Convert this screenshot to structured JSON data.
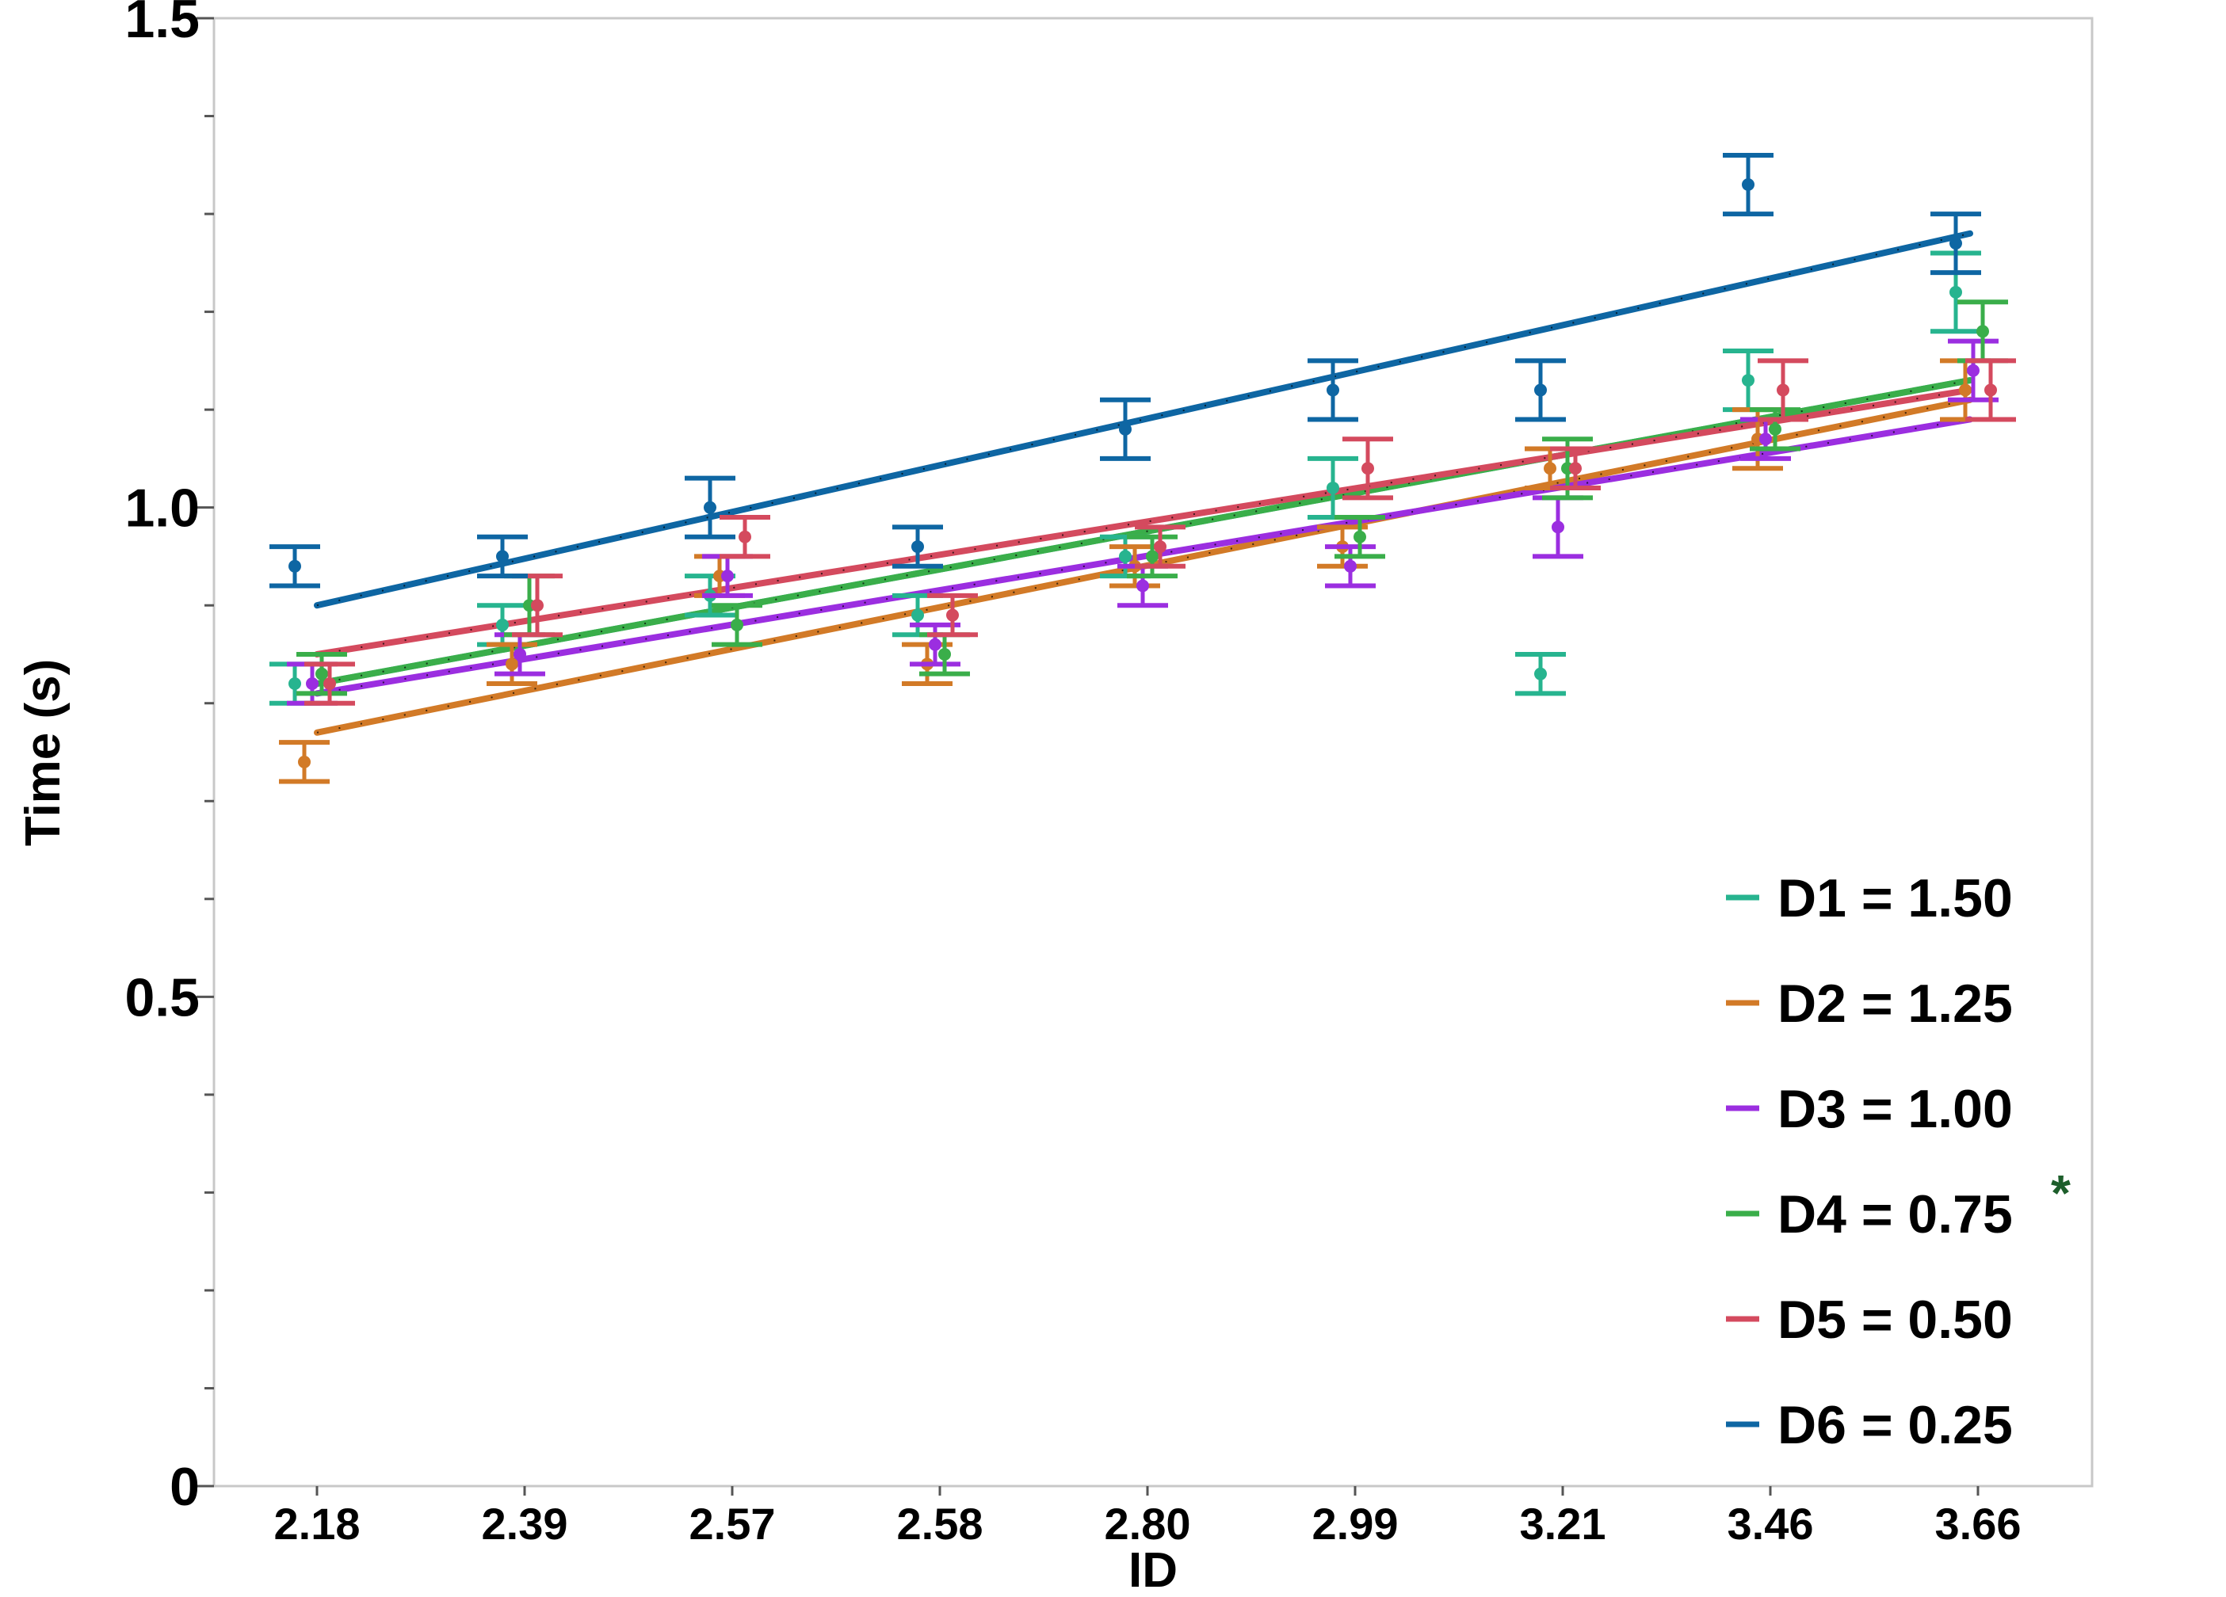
{
  "chart_data": {
    "type": "line",
    "title": "",
    "xlabel": "ID",
    "ylabel": "Time (s)",
    "ylim": [
      0,
      1.5
    ],
    "yticks": [
      "0",
      "0.5",
      "1.0",
      "1.5"
    ],
    "categories": [
      "2.18",
      "2.39",
      "2.57",
      "2.58",
      "2.80",
      "2.99",
      "3.21",
      "3.46",
      "3.66"
    ],
    "grid": false,
    "legend_position": "bottom-right",
    "series": [
      {
        "name": "D1 = 1.50",
        "color": "#27b48f",
        "mark": "",
        "values": [
          0.82,
          0.88,
          0.91,
          0.89,
          0.95,
          1.02,
          0.83,
          1.13,
          1.22
        ],
        "errors": [
          0.02,
          0.02,
          0.02,
          0.02,
          0.02,
          0.03,
          0.02,
          0.03,
          0.04
        ],
        "fit": [
          0.82,
          1.13
        ]
      },
      {
        "name": "D2 = 1.25",
        "color": "#d27a27",
        "mark": "",
        "values": [
          0.74,
          0.84,
          0.93,
          0.84,
          0.94,
          0.96,
          1.04,
          1.07,
          1.12
        ],
        "errors": [
          0.02,
          0.02,
          0.02,
          0.02,
          0.02,
          0.02,
          0.02,
          0.03,
          0.03
        ],
        "fit": [
          0.77,
          1.11
        ]
      },
      {
        "name": "D3 = 1.00",
        "color": "#9b2ee0",
        "mark": "",
        "values": [
          0.82,
          0.85,
          0.93,
          0.86,
          0.92,
          0.94,
          0.98,
          1.07,
          1.14
        ],
        "errors": [
          0.02,
          0.02,
          0.02,
          0.02,
          0.02,
          0.02,
          0.03,
          0.02,
          0.03
        ],
        "fit": [
          0.81,
          1.09
        ]
      },
      {
        "name": "D4 = 0.75",
        "color": "#3aae4a",
        "mark": "*",
        "values": [
          0.83,
          0.9,
          0.88,
          0.85,
          0.95,
          0.97,
          1.04,
          1.08,
          1.18
        ],
        "errors": [
          0.02,
          0.03,
          0.02,
          0.02,
          0.02,
          0.02,
          0.03,
          0.02,
          0.03
        ],
        "fit": [
          0.82,
          1.13
        ]
      },
      {
        "name": "D5 = 0.50",
        "color": "#d44a5e",
        "mark": "",
        "values": [
          0.82,
          0.9,
          0.97,
          0.89,
          0.96,
          1.04,
          1.04,
          1.12,
          1.12
        ],
        "errors": [
          0.02,
          0.03,
          0.02,
          0.02,
          0.02,
          0.03,
          0.02,
          0.03,
          0.03
        ],
        "fit": [
          0.85,
          1.12
        ]
      },
      {
        "name": "D6 = 0.25",
        "color": "#0e66a3",
        "mark": "",
        "values": [
          0.94,
          0.95,
          1.0,
          0.96,
          1.08,
          1.12,
          1.12,
          1.33,
          1.27
        ],
        "errors": [
          0.02,
          0.02,
          0.03,
          0.02,
          0.03,
          0.03,
          0.03,
          0.03,
          0.03
        ],
        "fit": [
          0.9,
          1.28
        ]
      }
    ]
  }
}
